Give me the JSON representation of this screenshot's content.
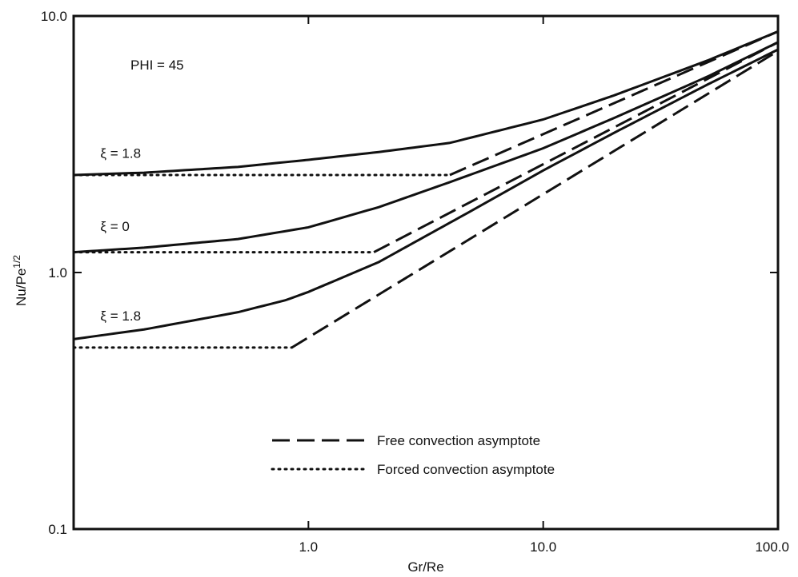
{
  "chart_data": {
    "type": "line",
    "title": "",
    "annotation": "PHI = 45",
    "xlabel": "Gr/Re",
    "ylabel_main": "Nu/Pe",
    "ylabel_sup": "1/2",
    "xscale": "log",
    "yscale": "log",
    "xlim": [
      0.1,
      100.0
    ],
    "ylim": [
      0.1,
      10.0
    ],
    "grid": false,
    "legend_position": "bottom-center",
    "x_ticks": [
      {
        "value": 1.0,
        "label": "1.0"
      },
      {
        "value": 10.0,
        "label": "10.0"
      },
      {
        "value": 100.0,
        "label": "100.0"
      }
    ],
    "y_ticks": [
      {
        "value": 0.1,
        "label": "0.1"
      },
      {
        "value": 1.0,
        "label": "1.0"
      },
      {
        "value": 10.0,
        "label": "10.0"
      }
    ],
    "series": [
      {
        "style": "solid",
        "label": "ξ = 1.8",
        "points": [
          [
            0.1,
            2.4
          ],
          [
            0.2,
            2.45
          ],
          [
            0.5,
            2.58
          ],
          [
            1.0,
            2.75
          ],
          [
            2.0,
            2.95
          ],
          [
            4.0,
            3.2
          ],
          [
            10.0,
            3.95
          ],
          [
            20.0,
            4.9
          ],
          [
            50.0,
            6.7
          ],
          [
            100.0,
            8.7
          ]
        ]
      },
      {
        "style": "solid",
        "label": "ξ = 0",
        "points": [
          [
            0.1,
            1.2
          ],
          [
            0.2,
            1.25
          ],
          [
            0.5,
            1.35
          ],
          [
            1.0,
            1.5
          ],
          [
            2.0,
            1.8
          ],
          [
            4.0,
            2.25
          ],
          [
            10.0,
            3.05
          ],
          [
            20.0,
            4.0
          ],
          [
            50.0,
            5.8
          ],
          [
            100.0,
            7.9
          ]
        ]
      },
      {
        "style": "solid",
        "label": "ξ = 1.8",
        "points": [
          [
            0.1,
            0.55
          ],
          [
            0.2,
            0.6
          ],
          [
            0.5,
            0.7
          ],
          [
            0.8,
            0.78
          ],
          [
            1.0,
            0.84
          ],
          [
            2.0,
            1.1
          ],
          [
            5.0,
            1.75
          ],
          [
            10.0,
            2.5
          ],
          [
            20.0,
            3.5
          ],
          [
            50.0,
            5.4
          ],
          [
            100.0,
            7.4
          ]
        ]
      },
      {
        "style": "dashed",
        "name": "Free convection asymptote",
        "points": [
          [
            4.0,
            2.4
          ],
          [
            100.0,
            8.7
          ]
        ]
      },
      {
        "style": "dashed",
        "name": "Free convection asymptote",
        "points": [
          [
            1.9,
            1.2
          ],
          [
            100.0,
            7.9
          ]
        ]
      },
      {
        "style": "dashed",
        "name": "Free convection asymptote",
        "points": [
          [
            0.85,
            0.51
          ],
          [
            100.0,
            7.3
          ]
        ]
      },
      {
        "style": "dotted",
        "name": "Forced convection asymptote",
        "points": [
          [
            0.1,
            2.4
          ],
          [
            4.0,
            2.4
          ]
        ]
      },
      {
        "style": "dotted",
        "name": "Forced convection asymptote",
        "points": [
          [
            0.1,
            1.2
          ],
          [
            1.9,
            1.2
          ]
        ]
      },
      {
        "style": "dotted",
        "name": "Forced convection asymptote",
        "points": [
          [
            0.1,
            0.51
          ],
          [
            0.85,
            0.51
          ]
        ]
      }
    ],
    "curve_labels": [
      {
        "text": "ξ = 1.8",
        "x": 0.13,
        "y": 2.8
      },
      {
        "text": "ξ = 0",
        "x": 0.13,
        "y": 1.45
      },
      {
        "text": "ξ = 1.8",
        "x": 0.13,
        "y": 0.65
      }
    ],
    "legend": [
      {
        "style": "dashed",
        "label": "Free convection asymptote"
      },
      {
        "style": "dotted",
        "label": "Forced convection asymptote"
      }
    ],
    "colors": {
      "line": "#111111",
      "background": "#ffffff"
    }
  }
}
